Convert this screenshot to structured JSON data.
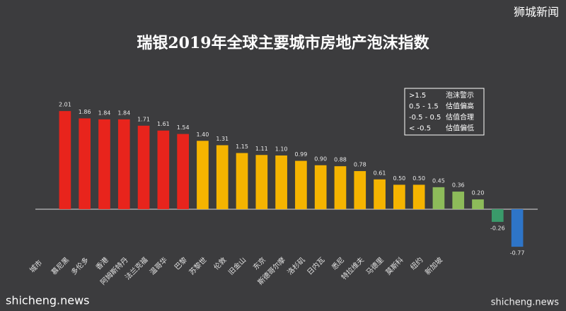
{
  "chart_data": {
    "type": "bar",
    "title": "瑞银2019年全球主要城市房地产泡沫指数",
    "x_label": "城市",
    "categories": [
      "慕尼黑",
      "多伦多",
      "香港",
      "阿姆斯特丹",
      "法兰克福",
      "温哥华",
      "巴黎",
      "苏黎世",
      "伦敦",
      "旧金山",
      "东京",
      "斯德哥尔摩",
      "洛杉矶",
      "日内瓦",
      "悉尼",
      "特拉维夫",
      "马德里",
      "莫斯科",
      "纽约",
      "新加坡",
      null,
      null,
      null,
      null
    ],
    "values": [
      2.01,
      1.86,
      1.84,
      1.84,
      1.71,
      1.61,
      1.54,
      1.4,
      1.31,
      1.15,
      1.11,
      1.1,
      0.99,
      0.9,
      0.88,
      0.78,
      0.61,
      0.5,
      0.5,
      0.45,
      0.36,
      0.2,
      -0.26,
      -0.77
    ],
    "value_labels": [
      "2.01",
      "1.86",
      "1.84",
      "1.84",
      "1.71",
      "1.61",
      "1.54",
      "1.40",
      "1.31",
      "1.15",
      "1.11",
      "1.10",
      "0.99",
      "0.90",
      "0.88",
      "0.78",
      "0.61",
      "0.50",
      "0.50",
      "0.45",
      "0.36",
      "0.20",
      "-0.26",
      "-0.77"
    ],
    "colors": [
      "#e8241c",
      "#e8241c",
      "#e8241c",
      "#e8241c",
      "#e8241c",
      "#e8241c",
      "#e8241c",
      "#f5b400",
      "#f5b400",
      "#f5b400",
      "#f5b400",
      "#f5b400",
      "#f5b400",
      "#f5b400",
      "#f5b400",
      "#f5b400",
      "#f5b400",
      "#f5b400",
      "#f5b400",
      "#8dbb5a",
      "#8dbb5a",
      "#8dbb5a",
      "#3a9a6a",
      "#2e75c8"
    ],
    "ylim": [
      -1,
      2.2
    ],
    "legend": [
      [
        ">1.5",
        "泡沫警示"
      ],
      [
        "0.5 - 1.5",
        "估值偏高"
      ],
      [
        "-0.5 - 0.5",
        "估值合理"
      ],
      [
        "< -0.5",
        "估值偏低"
      ]
    ],
    "watermarks": [
      "狮城新闻",
      "shicheng.news",
      "shicheng.news"
    ]
  }
}
